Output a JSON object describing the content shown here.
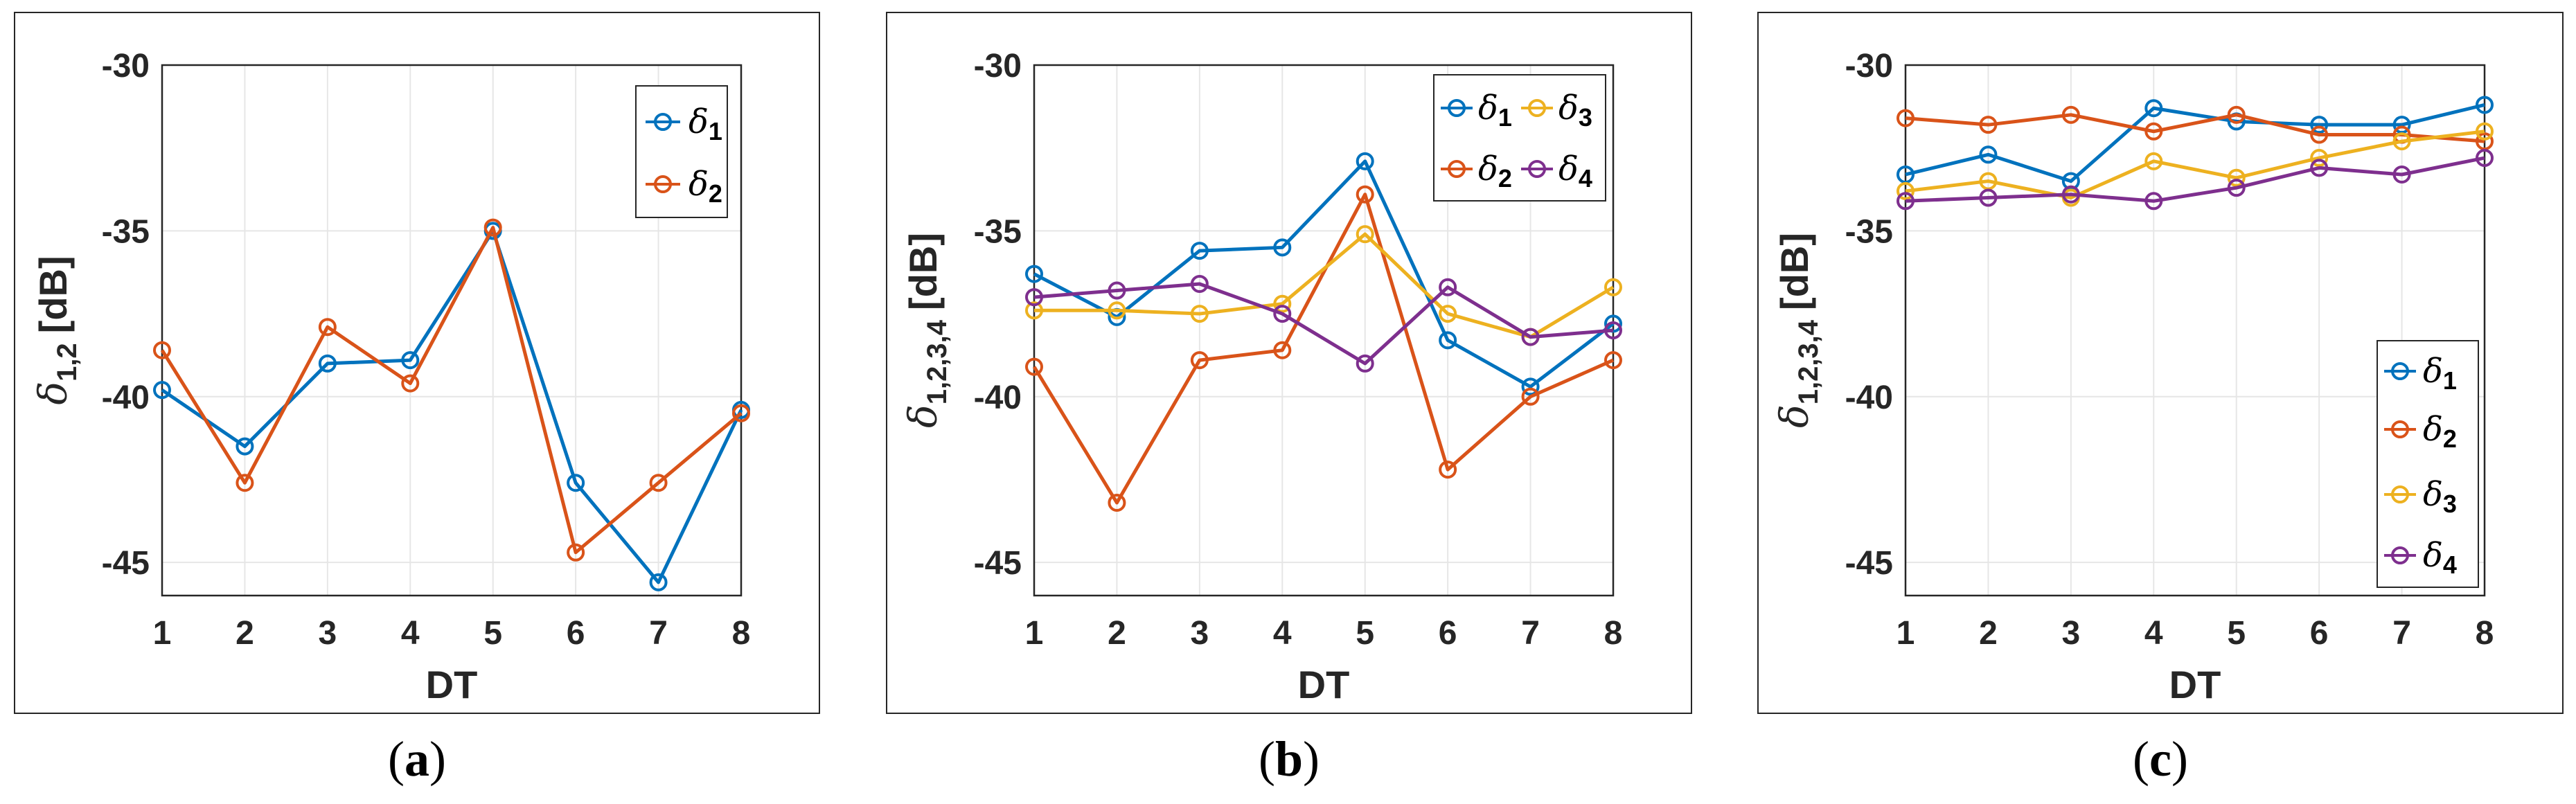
{
  "colors": {
    "delta1": "#0072BD",
    "delta2": "#D95319",
    "delta3": "#EDB120",
    "delta4": "#7E2F8E",
    "axis": "#262626",
    "grid": "#e6e6e6"
  },
  "chart_data": [
    {
      "type": "line",
      "panel": "a",
      "caption": {
        "open": "(",
        "letter": "a",
        "close": ")"
      },
      "xlabel": "DT",
      "ylabel": {
        "symbol": "δ",
        "sub": "1,2",
        "unit": "[dB]"
      },
      "xlim": [
        1,
        8
      ],
      "ylim": [
        -46,
        -30
      ],
      "xticks": [
        "1",
        "2",
        "3",
        "4",
        "5",
        "6",
        "7",
        "8"
      ],
      "yticks": [
        "-30",
        "-35",
        "-40",
        "-45"
      ],
      "ytick_values": [
        -30,
        -35,
        -40,
        -45
      ],
      "grid": true,
      "legend_position": "top-right",
      "legend_layout": "vertical",
      "x": [
        1,
        2,
        3,
        4,
        5,
        6,
        7,
        8
      ],
      "series": [
        {
          "name": "δ",
          "sub": "1",
          "color_key": "delta1",
          "values": [
            -39.8,
            -41.5,
            -39.0,
            -38.9,
            -35.0,
            -42.6,
            -45.6,
            -40.4
          ]
        },
        {
          "name": "δ",
          "sub": "2",
          "color_key": "delta2",
          "values": [
            -38.6,
            -42.6,
            -37.9,
            -39.6,
            -34.9,
            -44.7,
            -42.6,
            -40.5
          ]
        }
      ]
    },
    {
      "type": "line",
      "panel": "b",
      "caption": {
        "open": "(",
        "letter": "b",
        "close": ")"
      },
      "xlabel": "DT",
      "ylabel": {
        "symbol": "δ",
        "sub": "1,2,3,4",
        "unit": "[dB]"
      },
      "xlim": [
        1,
        8
      ],
      "ylim": [
        -46,
        -30
      ],
      "xticks": [
        "1",
        "2",
        "3",
        "4",
        "5",
        "6",
        "7",
        "8"
      ],
      "yticks": [
        "-30",
        "-35",
        "-40",
        "-45"
      ],
      "ytick_values": [
        -30,
        -35,
        -40,
        -45
      ],
      "grid": true,
      "legend_position": "top-right",
      "legend_layout": "two-column",
      "x": [
        1,
        2,
        3,
        4,
        5,
        6,
        7,
        8
      ],
      "series": [
        {
          "name": "δ",
          "sub": "1",
          "color_key": "delta1",
          "values": [
            -36.3,
            -37.6,
            -35.6,
            -35.5,
            -32.9,
            -38.3,
            -39.7,
            -37.8
          ]
        },
        {
          "name": "δ",
          "sub": "2",
          "color_key": "delta2",
          "values": [
            -39.1,
            -43.2,
            -38.9,
            -38.6,
            -33.9,
            -42.2,
            -40.0,
            -38.9
          ]
        },
        {
          "name": "δ",
          "sub": "3",
          "color_key": "delta3",
          "values": [
            -37.4,
            -37.4,
            -37.5,
            -37.2,
            -35.1,
            -37.5,
            -38.2,
            -36.7
          ]
        },
        {
          "name": "δ",
          "sub": "4",
          "color_key": "delta4",
          "values": [
            -37.0,
            -36.8,
            -36.6,
            -37.5,
            -39.0,
            -36.7,
            -38.2,
            -38.0
          ]
        }
      ]
    },
    {
      "type": "line",
      "panel": "c",
      "caption": {
        "open": "(",
        "letter": "c",
        "close": ")"
      },
      "xlabel": "DT",
      "ylabel": {
        "symbol": "δ",
        "sub": "1,2,3,4",
        "unit": "[dB]"
      },
      "xlim": [
        1,
        8
      ],
      "ylim": [
        -46,
        -30
      ],
      "xticks": [
        "1",
        "2",
        "3",
        "4",
        "5",
        "6",
        "7",
        "8"
      ],
      "yticks": [
        "-30",
        "-35",
        "-40",
        "-45"
      ],
      "ytick_values": [
        -30,
        -35,
        -40,
        -45
      ],
      "grid": true,
      "legend_position": "bottom-right",
      "legend_layout": "vertical",
      "x": [
        1,
        2,
        3,
        4,
        5,
        6,
        7,
        8
      ],
      "series": [
        {
          "name": "δ",
          "sub": "1",
          "color_key": "delta1",
          "values": [
            -33.3,
            -32.7,
            -33.5,
            -31.3,
            -31.7,
            -31.8,
            -31.8,
            -31.2
          ]
        },
        {
          "name": "δ",
          "sub": "2",
          "color_key": "delta2",
          "values": [
            -31.6,
            -31.8,
            -31.5,
            -32.0,
            -31.5,
            -32.1,
            -32.1,
            -32.3
          ]
        },
        {
          "name": "δ",
          "sub": "3",
          "color_key": "delta3",
          "values": [
            -33.8,
            -33.5,
            -34.0,
            -32.9,
            -33.4,
            -32.8,
            -32.3,
            -32.0
          ]
        },
        {
          "name": "δ",
          "sub": "4",
          "color_key": "delta4",
          "values": [
            -34.1,
            -34.0,
            -33.9,
            -34.1,
            -33.7,
            -33.1,
            -33.3,
            -32.8
          ]
        }
      ]
    }
  ]
}
